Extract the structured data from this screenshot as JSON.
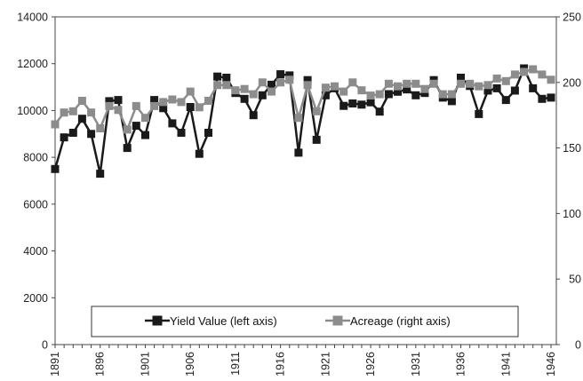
{
  "chart_data": {
    "type": "line",
    "x_start_label": "1891",
    "x": [
      1891,
      1892,
      1893,
      1894,
      1895,
      1896,
      1897,
      1898,
      1899,
      1900,
      1901,
      1902,
      1903,
      1904,
      1905,
      1906,
      1907,
      1908,
      1909,
      1910,
      1911,
      1912,
      1913,
      1914,
      1915,
      1916,
      1917,
      1918,
      1919,
      1920,
      1921,
      1922,
      1923,
      1924,
      1925,
      1926,
      1927,
      1928,
      1929,
      1930,
      1931,
      1932,
      1933,
      1934,
      1935,
      1936,
      1937,
      1938,
      1939,
      1940,
      1941,
      1942,
      1943,
      1944,
      1945,
      1946
    ],
    "x_ticks": [
      "1891",
      "1896",
      "1901",
      "1906",
      "1911",
      "1916",
      "1921",
      "1926",
      "1931",
      "1936",
      "1941",
      "1946"
    ],
    "y_left_ticks": [
      "0",
      "2000",
      "4000",
      "6000",
      "8000",
      "10000",
      "12000",
      "14000"
    ],
    "y_right_ticks": [
      "0",
      "50",
      "100",
      "150",
      "200",
      "250"
    ],
    "ylim_left": [
      0,
      14000
    ],
    "ylim_right": [
      0,
      250
    ],
    "grid": false,
    "legend_position": "bottom-center",
    "series": [
      {
        "name": "Yield Value (left axis)",
        "axis": "left",
        "color": "#1a1a1a",
        "marker": "square",
        "values": [
          7500,
          8850,
          9050,
          9650,
          9000,
          7300,
          10400,
          10450,
          8400,
          9350,
          8950,
          10450,
          10100,
          9450,
          9050,
          10150,
          8150,
          9050,
          11450,
          11400,
          10750,
          10500,
          9800,
          10650,
          11100,
          11550,
          11500,
          8200,
          11300,
          8750,
          10650,
          10950,
          10200,
          10300,
          10250,
          10350,
          9950,
          10700,
          10800,
          10900,
          10650,
          10750,
          11300,
          10550,
          10400,
          11400,
          11050,
          9850,
          10850,
          10950,
          10450,
          10850,
          11800,
          10950,
          10500,
          10550
        ]
      },
      {
        "name": "Acreage (right axis)",
        "axis": "right",
        "color": "#8c8c8c",
        "marker": "square",
        "values": [
          168,
          177,
          178,
          186,
          177,
          165,
          182,
          179,
          164,
          182,
          173,
          182,
          185,
          187,
          185,
          193,
          181,
          186,
          198,
          198,
          194,
          195,
          191,
          200,
          193,
          200,
          202,
          173,
          198,
          178,
          196,
          197,
          193,
          200,
          194,
          190,
          191,
          199,
          197,
          199,
          199,
          195,
          199,
          191,
          191,
          199,
          199,
          197,
          198,
          203,
          201,
          206,
          208,
          210,
          206,
          202
        ]
      }
    ]
  }
}
